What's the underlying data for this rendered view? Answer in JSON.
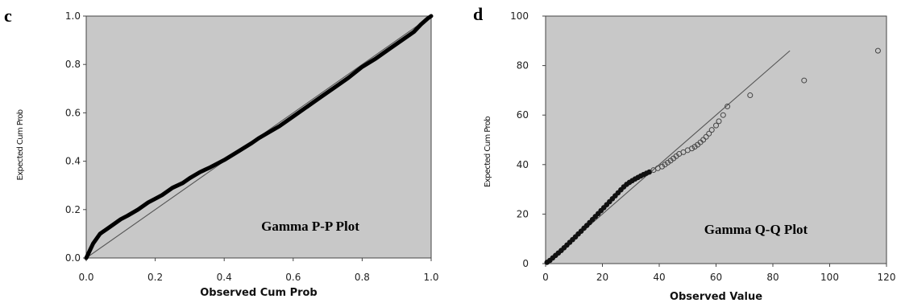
{
  "chart_data": [
    {
      "type": "line",
      "panel_letter": "c",
      "annotation": "Gamma P-P Plot",
      "xlabel": "Observed Cum Prob",
      "ylabel": "Expected Cum Prob",
      "xlim": [
        0,
        1
      ],
      "ylim": [
        0,
        1
      ],
      "xticks": [
        "0.0",
        "0.2",
        "0.4",
        "0.6",
        "0.8",
        "1.0"
      ],
      "yticks": [
        "0.0",
        "0.2",
        "0.4",
        "0.6",
        "0.8",
        "1.0"
      ],
      "background": "#c8c8c8",
      "reference_line": {
        "x": [
          0,
          1
        ],
        "y": [
          0,
          1
        ]
      },
      "series": [
        {
          "x": [
            0.0,
            0.01,
            0.02,
            0.04,
            0.06,
            0.08,
            0.1,
            0.12,
            0.15,
            0.18,
            0.2,
            0.22,
            0.25,
            0.28,
            0.3,
            0.33,
            0.36,
            0.4,
            0.44,
            0.48,
            0.5,
            0.53,
            0.56,
            0.6,
            0.64,
            0.68,
            0.72,
            0.76,
            0.8,
            0.84,
            0.88,
            0.92,
            0.95,
            0.97,
            0.99,
            1.0
          ],
          "y": [
            0.0,
            0.03,
            0.06,
            0.1,
            0.12,
            0.14,
            0.16,
            0.175,
            0.2,
            0.23,
            0.245,
            0.26,
            0.29,
            0.31,
            0.33,
            0.355,
            0.375,
            0.405,
            0.44,
            0.475,
            0.495,
            0.52,
            0.545,
            0.585,
            0.625,
            0.665,
            0.705,
            0.745,
            0.79,
            0.825,
            0.865,
            0.905,
            0.935,
            0.965,
            0.99,
            1.0
          ]
        }
      ]
    },
    {
      "type": "scatter",
      "panel_letter": "d",
      "annotation": "Gamma Q-Q Plot",
      "xlabel": "Observed Value",
      "ylabel": "Expected Cum Prob",
      "xlim": [
        0,
        120
      ],
      "ylim": [
        0,
        100
      ],
      "xticks": [
        "0",
        "20",
        "40",
        "60",
        "80",
        "100",
        "120"
      ],
      "yticks": [
        "0",
        "20",
        "40",
        "60",
        "80",
        "100"
      ],
      "background": "#c8c8c8",
      "reference_line": {
        "x": [
          0,
          86
        ],
        "y": [
          0,
          86
        ]
      },
      "series": [
        {
          "x": [
            0.5,
            1.5,
            2.5,
            3.5,
            4.5,
            5.5,
            6.5,
            7.5,
            8.5,
            9.5,
            10.5,
            11.5,
            12.5,
            13.5,
            14.5,
            15.5,
            16.5,
            17.5,
            18.5,
            19.5,
            20.5,
            21.5,
            22.5,
            23.5,
            24.5,
            25.5,
            26.5,
            27.5,
            28.5,
            29.5,
            30.5,
            31.5,
            32.5,
            33.5,
            34.5,
            35.5,
            36.5,
            38,
            39.5,
            41,
            42,
            43,
            44,
            45,
            46,
            47,
            48.5,
            50,
            51.5,
            52.5,
            53.5,
            54.5,
            55.5,
            56.5,
            57.5,
            58.5,
            60,
            61,
            62.5,
            64,
            72,
            91,
            117
          ],
          "y": [
            0.5,
            1.3,
            2.3,
            3.3,
            4.3,
            5.3,
            6.4,
            7.5,
            8.6,
            9.7,
            10.8,
            12,
            13.1,
            14.3,
            15.4,
            16.6,
            17.8,
            19,
            20.2,
            21.4,
            22.6,
            23.8,
            25,
            26.2,
            27.4,
            28.6,
            29.8,
            31,
            32,
            32.8,
            33.5,
            34.2,
            34.8,
            35.4,
            36,
            36.5,
            37,
            37.8,
            38.5,
            39.2,
            40,
            40.8,
            41.6,
            42.5,
            43.4,
            44.3,
            45,
            45.8,
            46.5,
            47.2,
            48,
            49,
            50,
            51.2,
            52.5,
            54,
            55.8,
            57.5,
            60,
            63.5,
            68,
            74,
            86
          ]
        }
      ]
    }
  ]
}
